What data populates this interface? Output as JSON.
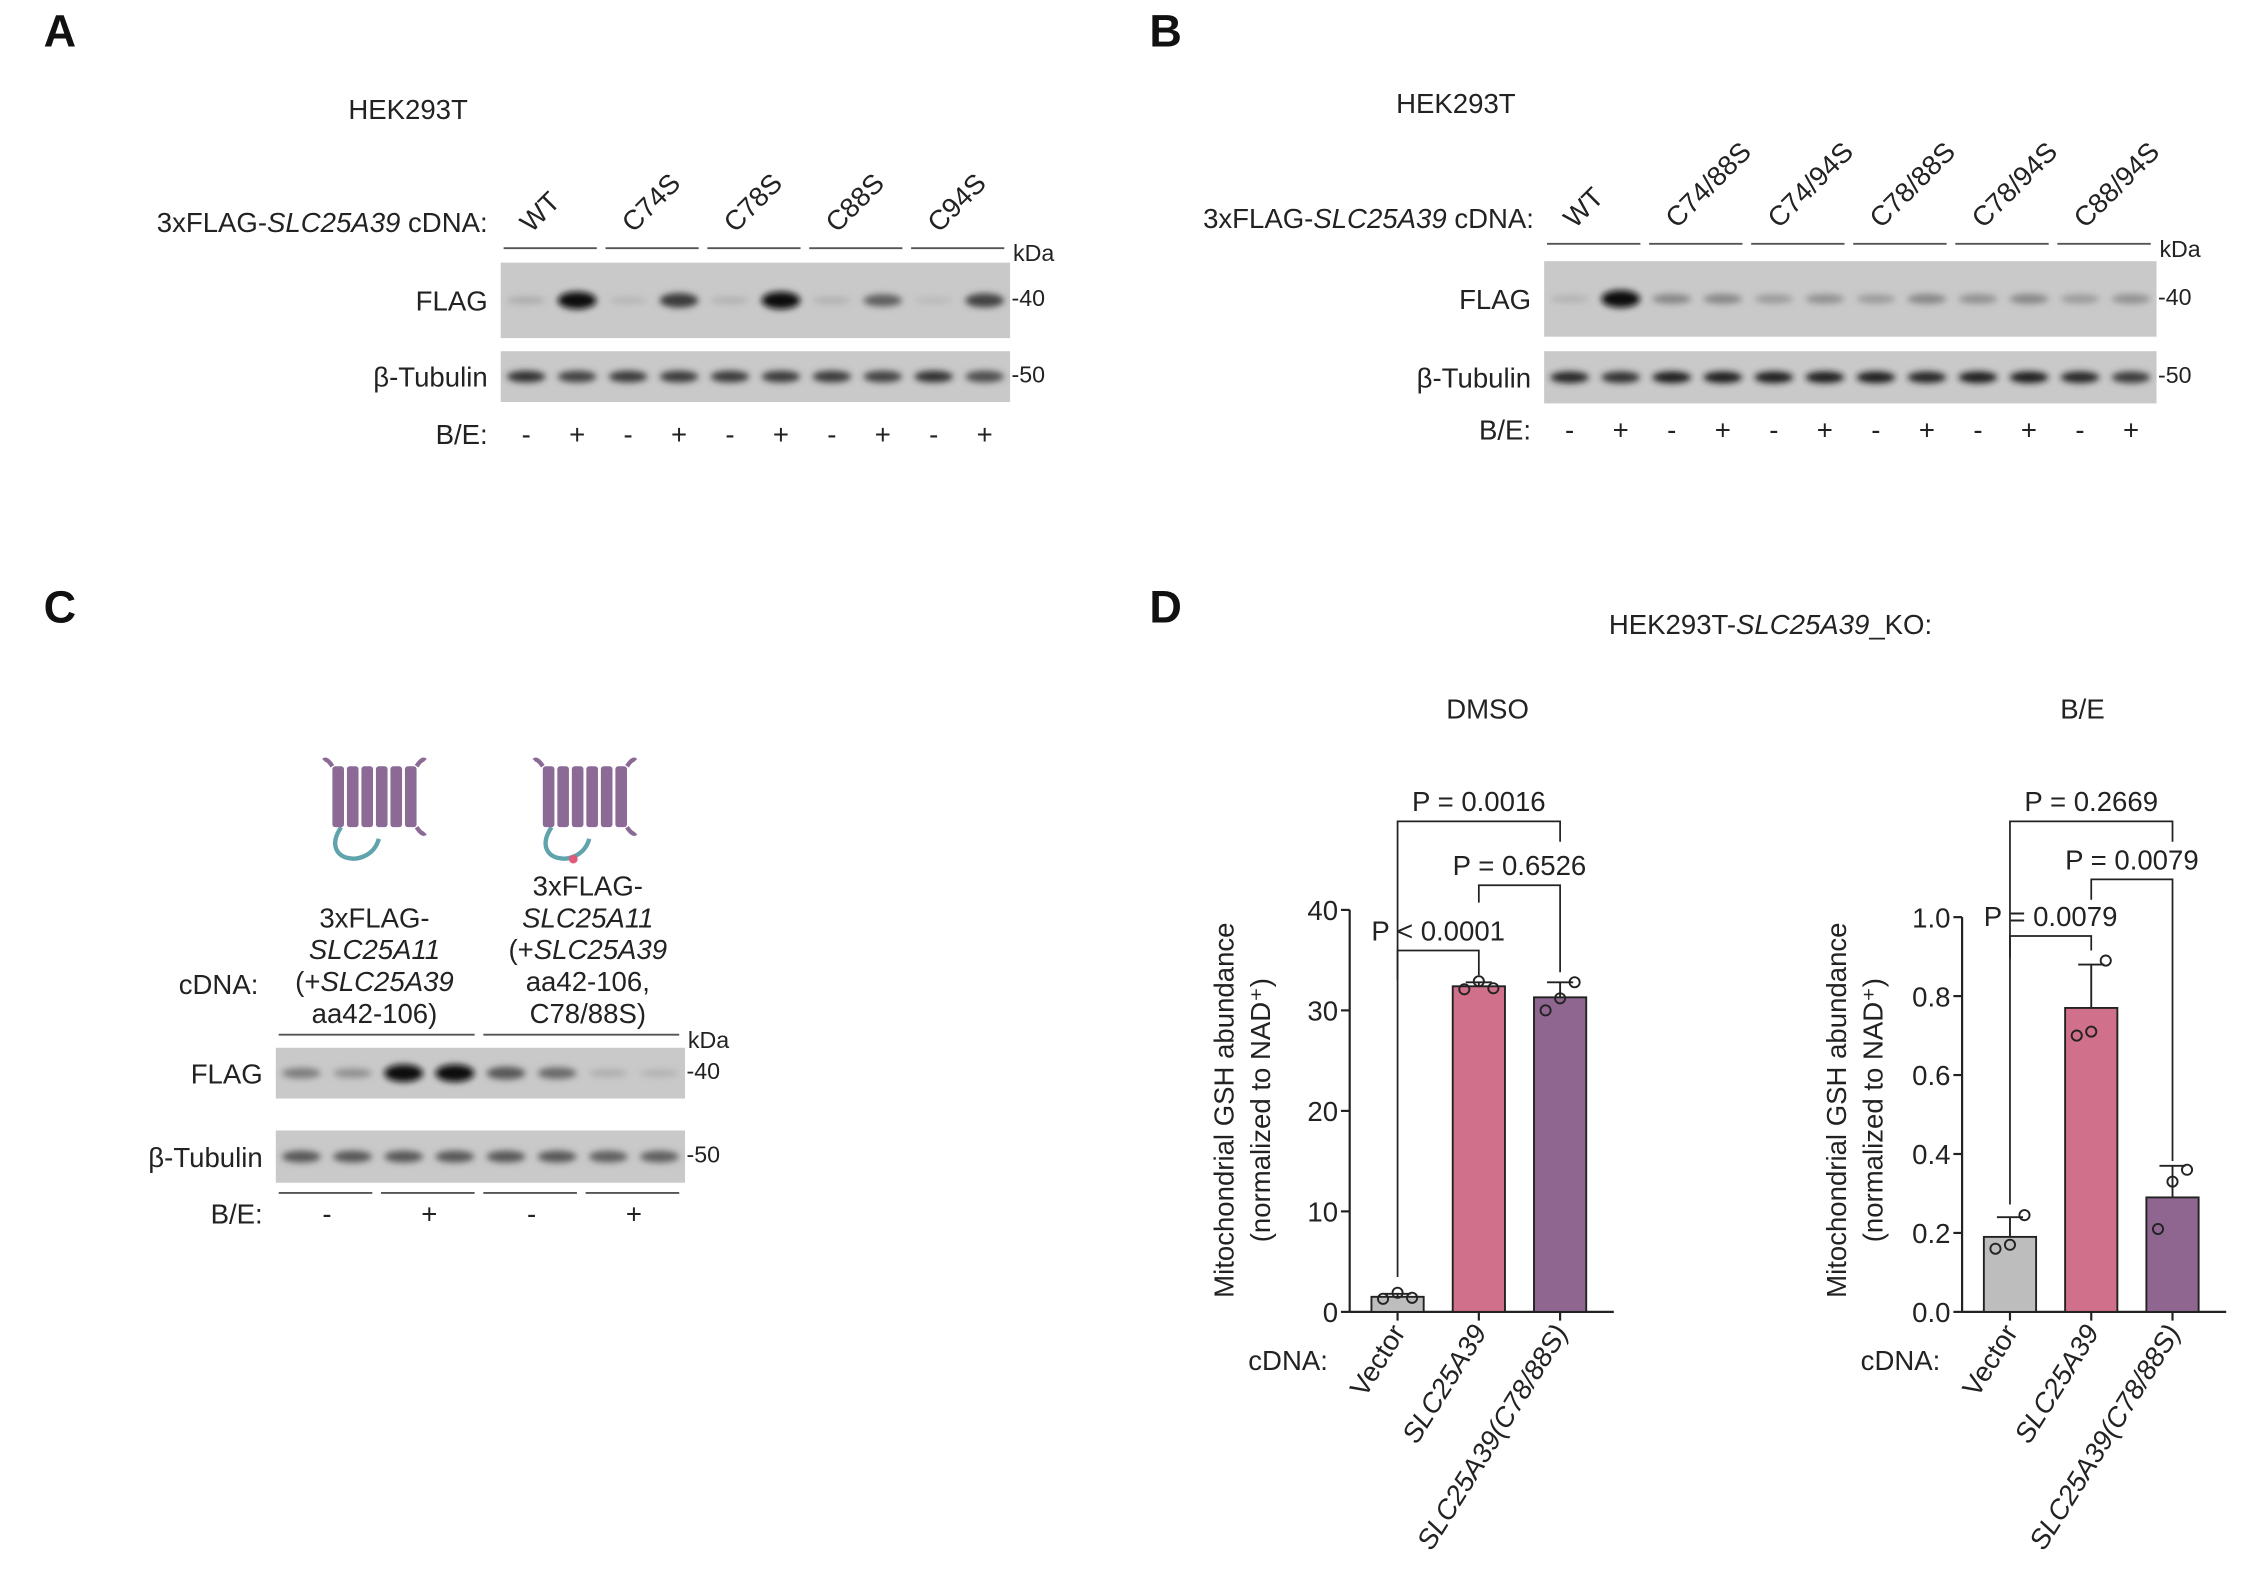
{
  "panels": {
    "a": {
      "letter": "A",
      "cell_line": "HEK293T",
      "cdna_prefix": "3xFLAG-",
      "cdna_gene": "SLC25A39",
      "cdna_suffix": " cDNA:",
      "lanes": [
        "WT",
        "C74S",
        "C78S",
        "C88S",
        "C94S"
      ],
      "kda": "kDa",
      "flag_label": "FLAG",
      "tubulin_label": "β-Tubulin",
      "flag_marker": "-40",
      "tubulin_marker": "-50",
      "be_label": "B/E:",
      "be_signs": [
        "-",
        "+",
        "-",
        "+",
        "-",
        "+",
        "-",
        "+",
        "-",
        "+"
      ],
      "flag_band_intensity": [
        0.15,
        1.0,
        0.1,
        0.75,
        0.12,
        1.0,
        0.12,
        0.55,
        0.08,
        0.7
      ],
      "tubulin_band_intensity": [
        0.8,
        0.7,
        0.75,
        0.75,
        0.75,
        0.75,
        0.75,
        0.7,
        0.8,
        0.65
      ]
    },
    "b": {
      "letter": "B",
      "cell_line": "HEK293T",
      "cdna_prefix": "3xFLAG-",
      "cdna_gene": "SLC25A39",
      "cdna_suffix": " cDNA:",
      "lanes": [
        "WT",
        "C74/88S",
        "C74/94S",
        "C78/88S",
        "C78/94S",
        "C88/94S"
      ],
      "kda": "kDa",
      "flag_label": "FLAG",
      "tubulin_label": "β-Tubulin",
      "flag_marker": "-40",
      "tubulin_marker": "-50",
      "be_label": "B/E:",
      "be_signs": [
        "-",
        "+",
        "-",
        "+",
        "-",
        "+",
        "-",
        "+",
        "-",
        "+",
        "-",
        "+"
      ],
      "flag_band_intensity": [
        0.12,
        1.0,
        0.35,
        0.35,
        0.25,
        0.3,
        0.25,
        0.35,
        0.3,
        0.35,
        0.25,
        0.3
      ],
      "tubulin_band_intensity": [
        0.85,
        0.8,
        0.9,
        0.9,
        0.9,
        0.9,
        0.9,
        0.85,
        0.9,
        0.9,
        0.85,
        0.75
      ]
    },
    "c": {
      "letter": "C",
      "cdna_label": "cDNA:",
      "construct1": [
        "3xFLAG-",
        "SLC25A11",
        "(+",
        "SLC25A39",
        "aa42-106)"
      ],
      "construct2": [
        "3xFLAG-",
        "SLC25A11",
        "(+",
        "SLC25A39",
        "aa42-106,",
        "C78/88S)"
      ],
      "kda": "kDa",
      "flag_label": "FLAG",
      "tubulin_label": "β-Tubulin",
      "flag_marker": "-40",
      "tubulin_marker": "-50",
      "be_label": "B/E:",
      "be_signs": [
        "-",
        "+",
        "-",
        "+"
      ],
      "flag_band_intensity": [
        0.4,
        0.3,
        1.0,
        1.0,
        0.6,
        0.5,
        0.15,
        0.12
      ],
      "tubulin_band_intensity": [
        0.6,
        0.6,
        0.6,
        0.6,
        0.6,
        0.6,
        0.55,
        0.55
      ]
    },
    "d": {
      "letter": "D",
      "title_prefix": "HEK293T-",
      "title_gene": "SLC25A39",
      "title_suffix": "_KO:",
      "cdna_label": "cDNA:"
    }
  },
  "colors": {
    "vector": "#bdbdbd",
    "slc25a39": "#d0708a",
    "mutant": "#8e6690",
    "blot_bg": "#c9c9c9"
  },
  "chart_data": [
    {
      "type": "bar",
      "title": "DMSO",
      "ylabel": [
        "Mitochondrial GSH abundance",
        "(normalized to NAD⁺)"
      ],
      "categories": [
        "Vector",
        "SLC25A39",
        "SLC25A39(C78/88S)"
      ],
      "values": [
        1.5,
        32.4,
        31.3
      ],
      "sd": [
        0.3,
        0.4,
        1.5
      ],
      "points": [
        [
          1.3,
          1.9,
          1.4
        ],
        [
          32.1,
          32.9,
          32.2
        ],
        [
          30.0,
          31.2,
          32.8
        ]
      ],
      "ylim": [
        0,
        40
      ],
      "yticks": [
        "0",
        "10",
        "20",
        "30",
        "40"
      ],
      "comparisons": [
        {
          "from": 0,
          "to": 1,
          "label": "P < 0.0001"
        },
        {
          "from": 1,
          "to": 2,
          "label": "P = 0.6526"
        },
        {
          "from": 0,
          "to": 2,
          "label": "P = 0.0016"
        }
      ]
    },
    {
      "type": "bar",
      "title": "B/E",
      "ylabel": [
        "Mitochondrial GSH abundance",
        "(normalized to NAD⁺)"
      ],
      "categories": [
        "Vector",
        "SLC25A39",
        "SLC25A39(C78/88S)"
      ],
      "values": [
        0.19,
        0.77,
        0.29
      ],
      "sd": [
        0.05,
        0.11,
        0.08
      ],
      "points": [
        [
          0.16,
          0.17,
          0.245
        ],
        [
          0.7,
          0.71,
          0.89
        ],
        [
          0.21,
          0.33,
          0.36
        ]
      ],
      "ylim": [
        0,
        1.0
      ],
      "yticks": [
        "0.0",
        "0.2",
        "0.4",
        "0.6",
        "0.8",
        "1.0"
      ],
      "comparisons": [
        {
          "from": 0,
          "to": 1,
          "label": "P = 0.0079"
        },
        {
          "from": 1,
          "to": 2,
          "label": "P = 0.0079"
        },
        {
          "from": 0,
          "to": 2,
          "label": "P = 0.2669"
        }
      ]
    }
  ]
}
